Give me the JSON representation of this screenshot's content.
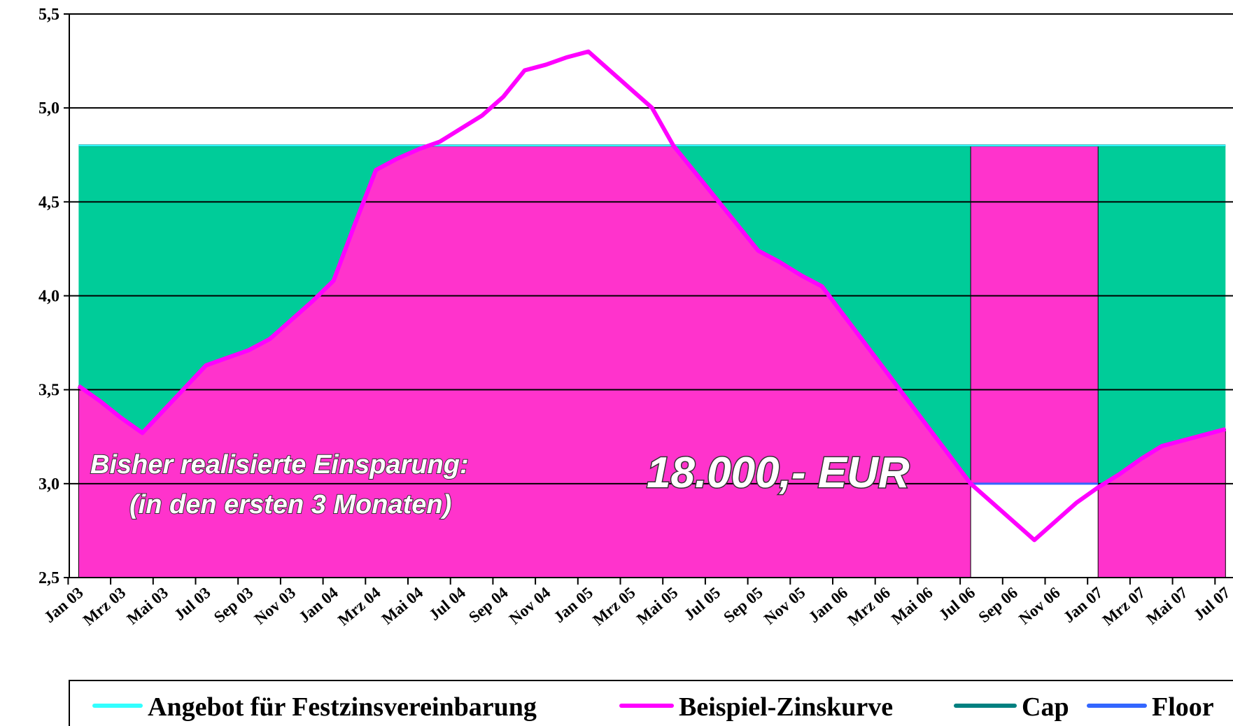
{
  "chart_data": {
    "type": "area",
    "categories": [
      "Jan 03",
      null,
      "Mrz 03",
      null,
      "Mai 03",
      null,
      "Jul 03",
      null,
      "Sep 03",
      null,
      "Nov 03",
      null,
      "Jan 04",
      null,
      "Mrz 04",
      null,
      "Mai 04",
      null,
      "Jul 04",
      null,
      "Sep 04",
      null,
      "Nov 04",
      null,
      "Jan 05",
      null,
      "Mrz 05",
      null,
      "Mai 05",
      null,
      "Jul 05",
      null,
      "Sep 05",
      null,
      "Nov 05",
      null,
      "Jan 06",
      null,
      "Mrz 06",
      null,
      "Mai 06",
      null,
      "Jul 06",
      null,
      "Sep 06",
      null,
      "Nov 06",
      null,
      "Jan 07",
      null,
      "Mrz 07",
      null,
      "Mai 07",
      null,
      "Jul 07"
    ],
    "series": [
      {
        "name": "Angebot für Festzinsvereinbarung",
        "color": "#33ffff",
        "values": [
          4.8,
          4.8,
          4.8,
          4.8,
          4.8,
          4.8,
          4.8,
          4.8,
          4.8,
          4.8,
          4.8,
          4.8,
          4.8,
          4.8,
          4.8,
          4.8,
          4.8,
          4.8,
          4.8,
          4.8,
          4.8,
          4.8,
          4.8,
          4.8,
          4.8,
          4.8,
          4.8,
          4.8,
          4.8,
          4.8,
          4.8,
          4.8,
          4.8,
          4.8,
          4.8,
          4.8,
          4.8,
          4.8,
          4.8,
          4.8,
          4.8,
          4.8,
          4.8,
          4.8,
          4.8,
          4.8,
          4.8,
          4.8,
          4.8,
          4.8,
          4.8,
          4.8,
          4.8,
          4.8,
          4.8
        ]
      },
      {
        "name": "Beispiel-Zinskurve",
        "color": "#ff00ff",
        "values": [
          3.52,
          3.44,
          3.35,
          3.27,
          3.39,
          3.51,
          3.63,
          3.67,
          3.71,
          3.77,
          3.87,
          3.97,
          4.08,
          4.38,
          4.67,
          4.73,
          4.78,
          4.82,
          4.89,
          4.96,
          5.06,
          5.2,
          5.23,
          5.27,
          5.3,
          5.2,
          5.1,
          5.0,
          4.8,
          4.66,
          4.52,
          4.38,
          4.24,
          4.18,
          4.11,
          4.05,
          3.9,
          3.75,
          3.6,
          3.45,
          3.3,
          3.15,
          3.0,
          2.9,
          2.8,
          2.7,
          2.8,
          2.9,
          2.98,
          3.05,
          3.13,
          3.2,
          3.23,
          3.26,
          3.29
        ]
      },
      {
        "name": "Cap",
        "color": "#008080",
        "values": [
          4.8,
          4.8,
          4.8,
          4.8,
          4.8,
          4.8,
          4.8,
          4.8,
          4.8,
          4.8,
          4.8,
          4.8,
          4.8,
          4.8,
          4.8,
          4.8,
          4.8,
          4.8,
          4.8,
          4.8,
          4.8,
          4.8,
          4.8,
          4.8,
          4.8,
          4.8,
          4.8,
          4.8,
          4.8,
          4.8,
          4.8,
          4.8,
          4.8,
          4.8,
          4.8,
          4.8,
          4.8,
          4.8,
          4.8,
          4.8,
          4.8,
          4.8,
          4.8,
          4.8,
          4.8,
          4.8,
          4.8,
          4.8,
          4.8,
          4.8,
          4.8,
          4.8,
          4.8,
          4.8,
          4.8
        ]
      },
      {
        "name": "Floor",
        "color": "#3366ff",
        "values": [
          null,
          null,
          null,
          null,
          null,
          null,
          null,
          null,
          null,
          null,
          null,
          null,
          null,
          null,
          null,
          null,
          null,
          null,
          null,
          null,
          null,
          null,
          null,
          null,
          null,
          null,
          null,
          null,
          null,
          null,
          null,
          null,
          null,
          null,
          null,
          null,
          null,
          null,
          null,
          null,
          null,
          null,
          3.0,
          3.0,
          3.0,
          3.0,
          3.0,
          3.0,
          3.0,
          null,
          null,
          null,
          null,
          null,
          null
        ]
      }
    ],
    "savings_color": "#ff33cc",
    "remaining_color": "#00cc99",
    "ylim": [
      2.5,
      5.5
    ],
    "yticks": [
      {
        "value": 2.5,
        "label": "2,5"
      },
      {
        "value": 3.0,
        "label": "3,0"
      },
      {
        "value": 3.5,
        "label": "3,5"
      },
      {
        "value": 4.0,
        "label": "4,0"
      },
      {
        "value": 4.5,
        "label": "4,5"
      },
      {
        "value": 5.0,
        "label": "5,0"
      },
      {
        "value": 5.5,
        "label": "5,5"
      }
    ],
    "grid": true,
    "annotations": [
      {
        "text": "Bisher realisierte Einsparung:"
      },
      {
        "text": "(in den ersten 3 Monaten)"
      },
      {
        "text": "18.000,- EUR"
      }
    ]
  }
}
